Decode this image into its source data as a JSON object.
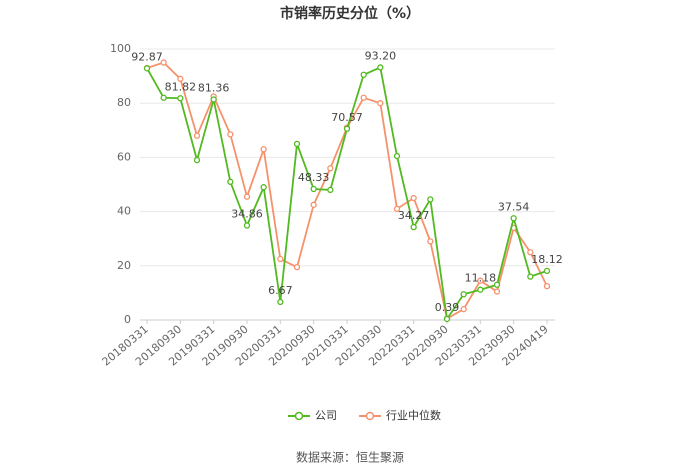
{
  "chart_data": {
    "type": "line",
    "title": "市销率历史分位（%）",
    "categories": [
      "20180331",
      null,
      "20180930",
      null,
      "20190331",
      null,
      "20190930",
      null,
      "20200331",
      null,
      "20200930",
      null,
      "20210331",
      null,
      "20210930",
      null,
      "20220331",
      null,
      "20220930",
      null,
      "20230331",
      null,
      "20230930",
      null,
      "20240419"
    ],
    "series": [
      {
        "name": "公司",
        "color": "#52b920",
        "values": [
          92.87,
          82,
          81.82,
          59,
          81.36,
          51,
          34.86,
          49,
          6.67,
          65,
          48.33,
          48,
          70.57,
          90.5,
          93.2,
          60.5,
          34.27,
          44.5,
          0.39,
          9.5,
          11.18,
          13,
          37.54,
          16,
          18.12
        ],
        "value_labels": [
          "92.87",
          null,
          "81.82",
          null,
          "81.36",
          null,
          "34.86",
          null,
          "6.67",
          null,
          "48.33",
          null,
          "70.57",
          null,
          "93.20",
          null,
          "34.27",
          null,
          "0.39",
          null,
          "11.18",
          null,
          "37.54",
          null,
          "18.12"
        ]
      },
      {
        "name": "行业中位数",
        "color": "#f5926c",
        "values": [
          93,
          95,
          89,
          68,
          82.5,
          68.5,
          45.5,
          63,
          22.5,
          19.5,
          42.5,
          56,
          71,
          82,
          80,
          41,
          45,
          29,
          0.5,
          4,
          14.5,
          10.5,
          34,
          25,
          12.5
        ]
      }
    ],
    "ylim": [
      0,
      100
    ],
    "yticks": [
      0,
      20,
      40,
      60,
      80,
      100
    ],
    "grid": true,
    "legend": "bottom",
    "source": "数据来源：恒生聚源"
  }
}
